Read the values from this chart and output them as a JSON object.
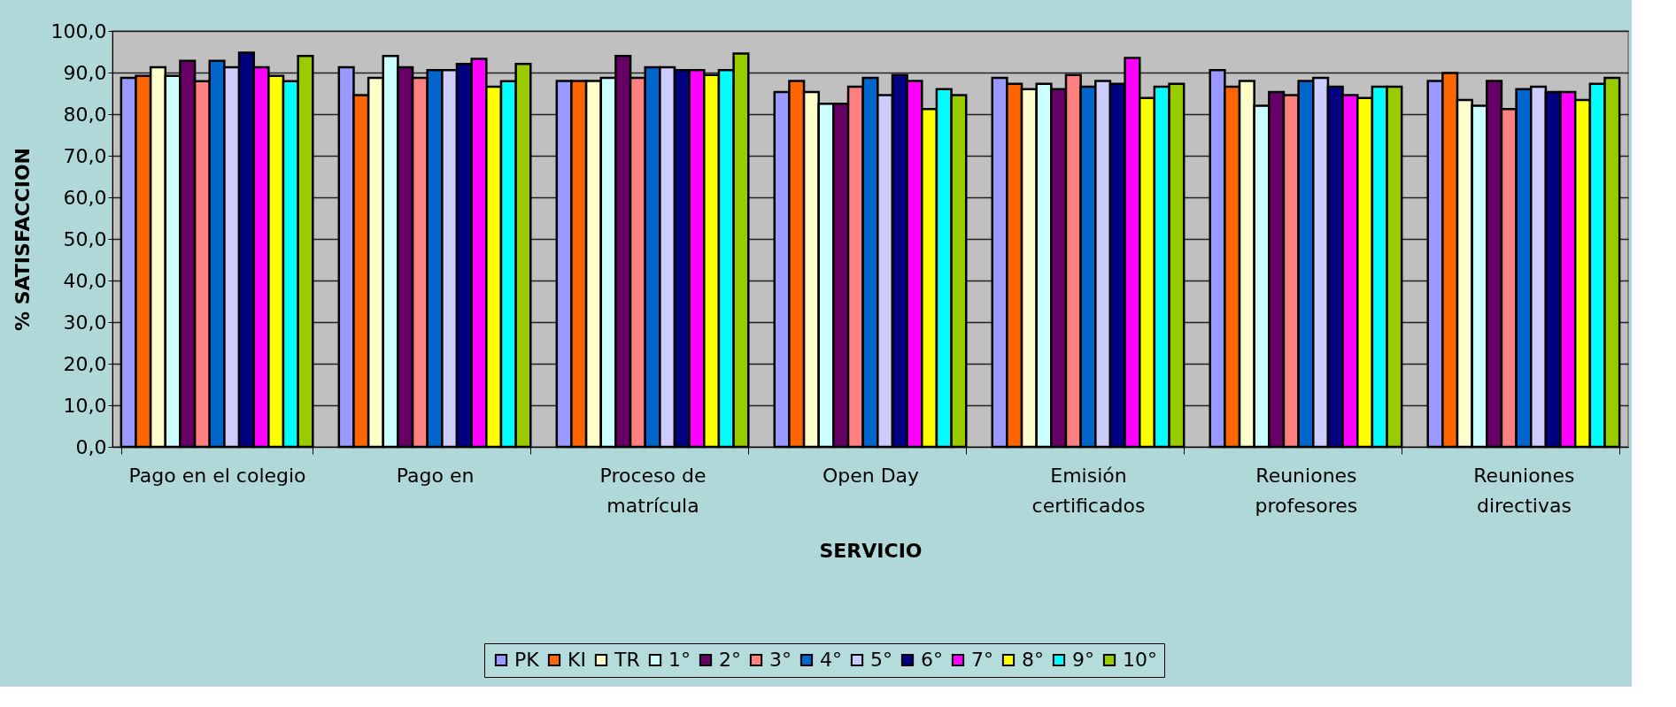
{
  "chart_data": {
    "type": "bar",
    "xlabel": "SERVICIO",
    "ylabel": "% SATISFACCION",
    "categories": [
      "Pago en el colegio",
      "Pago en",
      "Proceso de\nmatrícula",
      "Open Day",
      "Emisión\ncertificados",
      "Reuniones\nprofesores",
      "Reuniones\ndirectivas"
    ],
    "series": [
      {
        "name": "PK",
        "color": "#9999ff",
        "values": [
          88.7,
          91.3,
          88.0,
          85.3,
          88.7,
          90.6,
          88.0
        ]
      },
      {
        "name": "KI",
        "color": "#ff6600",
        "values": [
          89.2,
          84.6,
          88.0,
          88.0,
          87.3,
          86.6,
          89.9
        ]
      },
      {
        "name": "TR",
        "color": "#ffffcc",
        "values": [
          91.3,
          88.7,
          88.0,
          85.3,
          86.0,
          88.0,
          83.4
        ]
      },
      {
        "name": "1°",
        "color": "#ccffff",
        "values": [
          89.2,
          94.0,
          88.7,
          82.5,
          87.3,
          82.0,
          82.0
        ]
      },
      {
        "name": "2°",
        "color": "#660066",
        "values": [
          92.8,
          91.3,
          94.0,
          82.5,
          86.0,
          85.3,
          88.0
        ]
      },
      {
        "name": "3°",
        "color": "#ff8080",
        "values": [
          87.9,
          88.7,
          88.7,
          86.6,
          89.4,
          84.6,
          81.2
        ]
      },
      {
        "name": "4°",
        "color": "#0066cc",
        "values": [
          92.8,
          90.6,
          91.3,
          88.7,
          86.6,
          88.0,
          86.0
        ]
      },
      {
        "name": "5°",
        "color": "#ccccff",
        "values": [
          91.3,
          90.6,
          91.3,
          84.6,
          88.0,
          88.7,
          86.6
        ]
      },
      {
        "name": "6°",
        "color": "#000080",
        "values": [
          94.8,
          92.1,
          90.6,
          89.4,
          87.3,
          86.6,
          85.3
        ]
      },
      {
        "name": "7°",
        "color": "#ff00ff",
        "values": [
          91.3,
          93.3,
          90.6,
          88.0,
          93.5,
          84.6,
          85.3
        ]
      },
      {
        "name": "8°",
        "color": "#ffff00",
        "values": [
          89.2,
          86.6,
          89.4,
          81.2,
          83.9,
          83.9,
          83.4
        ]
      },
      {
        "name": "9°",
        "color": "#00ffff",
        "values": [
          87.9,
          87.9,
          90.6,
          86.0,
          86.6,
          86.6,
          87.3
        ]
      },
      {
        "name": "10°",
        "color": "#99cc00",
        "values": [
          94.0,
          92.1,
          94.6,
          84.6,
          87.3,
          86.6,
          88.7
        ]
      }
    ],
    "ylim": [
      0,
      100
    ],
    "yticks": [
      {
        "value": 0,
        "label": "0,0"
      },
      {
        "value": 10,
        "label": "10,0"
      },
      {
        "value": 20,
        "label": "20,0"
      },
      {
        "value": 30,
        "label": "30,0"
      },
      {
        "value": 40,
        "label": "40,0"
      },
      {
        "value": 50,
        "label": "50,0"
      },
      {
        "value": 60,
        "label": "60,0"
      },
      {
        "value": 70,
        "label": "70,0"
      },
      {
        "value": 80,
        "label": "80,0"
      },
      {
        "value": 90,
        "label": "90,0"
      },
      {
        "value": 100,
        "label": "100,0"
      }
    ],
    "grid": "y",
    "legend": "bottom"
  }
}
